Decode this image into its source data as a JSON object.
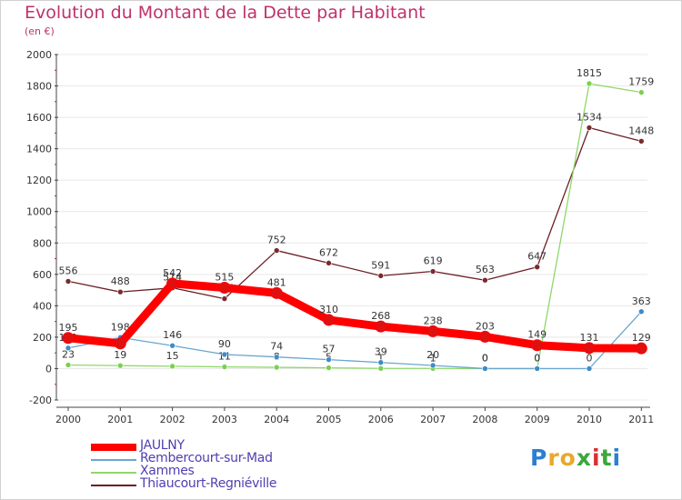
{
  "title": "Evolution du Montant de la Dette par Habitant",
  "subtitle": "(en €)",
  "logo": {
    "text": "Proxiti",
    "letter_colors": [
      "#2b7fd1",
      "#e8a92b",
      "#e8a92b",
      "#3aa83a",
      "#d83030",
      "#3aa83a",
      "#2b7fd1"
    ]
  },
  "colors": {
    "axis": "#444444",
    "grid": "#e8e8e8",
    "tick_text": "#333333",
    "value_text": "#333333"
  },
  "chart_data": {
    "type": "line",
    "title": "Evolution du Montant de la Dette par Habitant",
    "ylabel": "(en €)",
    "xlabel": "",
    "x": [
      "2000",
      "2001",
      "2002",
      "2003",
      "2004",
      "2005",
      "2006",
      "2007",
      "2008",
      "2009",
      "2010",
      "2011"
    ],
    "ylim": [
      -200,
      2000
    ],
    "yticks": [
      -200,
      0,
      200,
      400,
      600,
      800,
      1000,
      1200,
      1400,
      1600,
      1800,
      2000
    ],
    "legend_position": "bottom-left",
    "series": [
      {
        "name": "Thiaucourt-Regniéville",
        "color": "#6b1f24",
        "marker": "#7a2a2e",
        "stroke_width": 1.3,
        "values": [
          556,
          488,
          514,
          445,
          752,
          672,
          591,
          619,
          563,
          647,
          1534,
          1448
        ],
        "labels": [
          "556",
          "488",
          "514",
          "445",
          "752",
          "672",
          "591",
          "619",
          "563",
          "647",
          "1534",
          "1448"
        ]
      },
      {
        "name": "Xammes",
        "color": "#8ed86a",
        "marker": "#7cd050",
        "stroke_width": 1.3,
        "values": [
          23,
          19,
          15,
          11,
          8,
          5,
          1,
          1,
          0,
          0,
          1815,
          1759
        ],
        "labels": [
          "23",
          "19",
          "15",
          "11",
          "8",
          "5",
          "1",
          "1",
          "0",
          "0",
          "1815",
          "1759"
        ]
      },
      {
        "name": "Rembercourt-sur-Mad",
        "color": "#6aa6cf",
        "marker": "#3d8cc8",
        "stroke_width": 1.3,
        "values": [
          131,
          198,
          146,
          90,
          74,
          57,
          39,
          20,
          0,
          0,
          0,
          363
        ],
        "labels": [
          "131",
          "198",
          "146",
          "90",
          "74",
          "57",
          "39",
          "20",
          "0",
          "0",
          "0",
          "363"
        ]
      },
      {
        "name": "JAULNY",
        "color": "#ff0000",
        "marker": "#e01010",
        "stroke_width": 9,
        "values": [
          195,
          160,
          542,
          515,
          481,
          310,
          268,
          238,
          203,
          149,
          131,
          129
        ],
        "labels": [
          "195",
          "",
          "542",
          "515",
          "481",
          "310",
          "268",
          "238",
          "203",
          "149",
          "131",
          "129"
        ]
      }
    ]
  },
  "legend": [
    {
      "label": "JAULNY",
      "color": "#ff0000",
      "thickness": 8
    },
    {
      "label": "Rembercourt-sur-Mad",
      "color": "#6aa6cf",
      "thickness": 2
    },
    {
      "label": "Xammes",
      "color": "#8ed86a",
      "thickness": 2
    },
    {
      "label": "Thiaucourt-Regniéville",
      "color": "#6b1f24",
      "thickness": 2
    }
  ]
}
